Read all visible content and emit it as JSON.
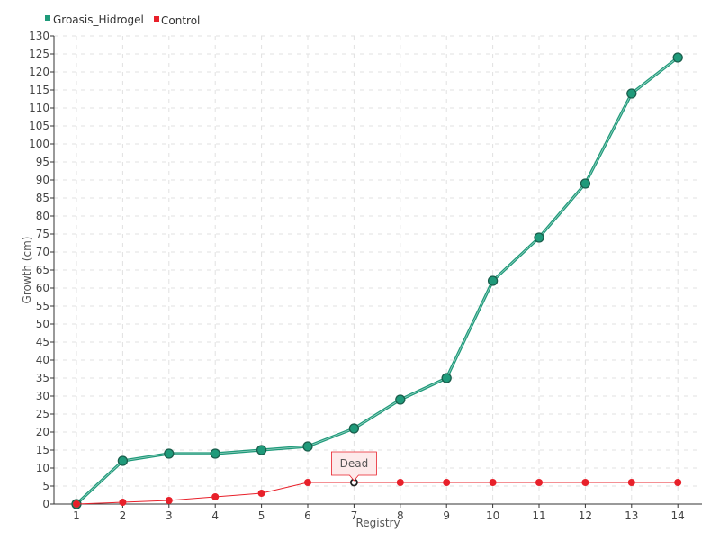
{
  "chart_data": {
    "type": "line",
    "categories": [
      "1",
      "2",
      "3",
      "4",
      "5",
      "6",
      "7",
      "8",
      "9",
      "10",
      "11",
      "12",
      "13",
      "14"
    ],
    "series": [
      {
        "name": "Groasis_Hidrogel",
        "color": "#1f9a7a",
        "values": [
          0,
          12,
          14,
          14,
          15,
          16,
          21,
          29,
          35,
          62,
          74,
          89,
          114,
          124
        ]
      },
      {
        "name": "Control",
        "color": "#e8202a",
        "values": [
          0,
          0.5,
          1,
          2,
          3,
          6,
          6,
          6,
          6,
          6,
          6,
          6,
          6,
          6
        ]
      }
    ],
    "xlabel": "Registry",
    "ylabel": "Growth (cm)",
    "ylim": [
      0,
      130
    ],
    "ytick_step": 5,
    "grid": true,
    "legend_position": "top-left",
    "annotation": {
      "text": "Dead",
      "series": "Control",
      "category": "7",
      "value": 6
    }
  }
}
